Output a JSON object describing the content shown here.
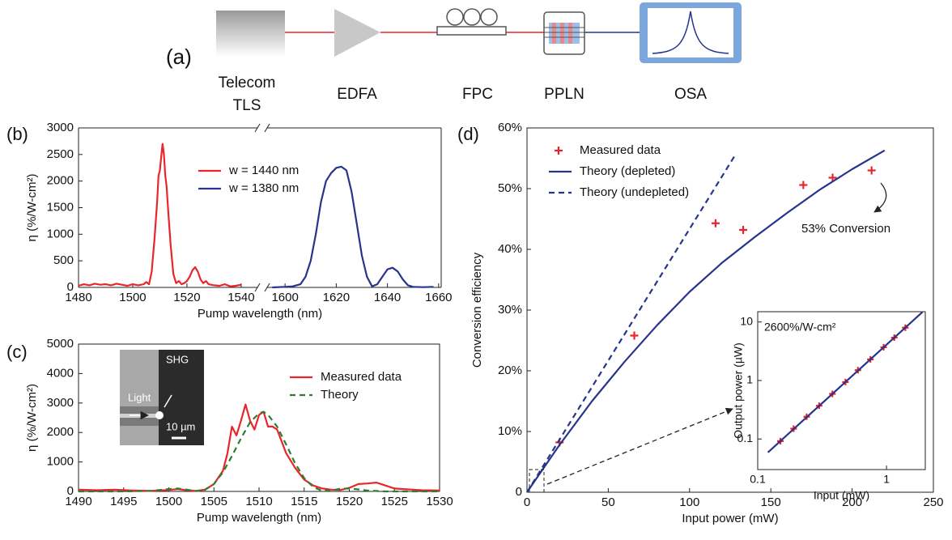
{
  "setup": {
    "panel_label": "(a)",
    "devices": [
      {
        "lines": [
          "Telecom",
          "TLS"
        ]
      },
      {
        "lines": [
          "EDFA"
        ]
      },
      {
        "lines": [
          "FPC"
        ]
      },
      {
        "lines": [
          "PPLN"
        ]
      },
      {
        "lines": [
          "OSA"
        ]
      }
    ]
  },
  "chart_data": [
    {
      "type": "line",
      "panel_label": "(b)",
      "xlabel": "Pump wavelength (nm)",
      "ylabel": "η (%/W-cm²)",
      "x_segments": [
        {
          "xlim": [
            1480,
            1546
          ],
          "xticks": [
            1480,
            1500,
            1520,
            1540
          ]
        },
        {
          "xlim": [
            1593,
            1661
          ],
          "xticks": [
            1600,
            1620,
            1640,
            1660
          ]
        }
      ],
      "ylim": [
        0,
        3000
      ],
      "yticks": [
        0,
        500,
        1000,
        1500,
        2000,
        2500,
        3000
      ],
      "series": [
        {
          "name": "w = 1440 nm",
          "color": "#e8262b",
          "style": "solid",
          "x": [
            1480,
            1482,
            1484,
            1486,
            1488,
            1490,
            1492,
            1494,
            1496,
            1498,
            1500,
            1502,
            1504,
            1505,
            1506,
            1507,
            1508,
            1509,
            1509.5,
            1510,
            1510.5,
            1511,
            1511.5,
            1512,
            1512.5,
            1513,
            1514,
            1515,
            1516,
            1517,
            1518,
            1519,
            1520,
            1521,
            1522,
            1523,
            1524,
            1525,
            1526,
            1527,
            1528,
            1530,
            1532,
            1534,
            1536,
            1538,
            1540
          ],
          "values": [
            30,
            60,
            40,
            70,
            50,
            60,
            40,
            70,
            50,
            30,
            60,
            40,
            60,
            100,
            60,
            300,
            900,
            1600,
            2100,
            2200,
            2450,
            2700,
            2500,
            2100,
            1900,
            1500,
            800,
            250,
            80,
            120,
            60,
            80,
            120,
            200,
            320,
            380,
            300,
            150,
            80,
            120,
            60,
            40,
            30,
            60,
            20,
            30,
            50
          ]
        },
        {
          "name": "w = 1380 nm",
          "color": "#27348b",
          "style": "solid",
          "x": [
            1595,
            1600,
            1603,
            1606,
            1608,
            1610,
            1612,
            1614,
            1616,
            1618,
            1620,
            1622,
            1624,
            1626,
            1628,
            1630,
            1632,
            1634,
            1636,
            1638,
            1640,
            1642,
            1644,
            1646,
            1648,
            1650,
            1654,
            1658
          ],
          "values": [
            0,
            10,
            20,
            60,
            200,
            500,
            1000,
            1600,
            2000,
            2150,
            2250,
            2270,
            2200,
            1800,
            1200,
            600,
            200,
            20,
            60,
            200,
            340,
            370,
            300,
            150,
            40,
            10,
            5,
            10
          ]
        }
      ]
    },
    {
      "type": "line",
      "panel_label": "(c)",
      "xlabel": "Pump wavelength (nm)",
      "ylabel": "η (%/W-cm²)",
      "xlim": [
        1490,
        1530
      ],
      "xticks": [
        1490,
        1495,
        1500,
        1505,
        1510,
        1515,
        1520,
        1525,
        1530
      ],
      "ylim": [
        0,
        5000
      ],
      "yticks": [
        0,
        1000,
        2000,
        3000,
        4000,
        5000
      ],
      "inset_labels": {
        "light": "Light",
        "shg": "SHG",
        "scale": "10 µm"
      },
      "series": [
        {
          "name": "Measured data",
          "color": "#e8262b",
          "style": "solid",
          "x": [
            1490,
            1492,
            1494,
            1496,
            1498,
            1500,
            1501,
            1502,
            1503,
            1504,
            1505,
            1506,
            1506.5,
            1507,
            1507.5,
            1508,
            1508.5,
            1509,
            1509.5,
            1510,
            1510.5,
            1511,
            1511.5,
            1512,
            1512.5,
            1513,
            1514,
            1515,
            1516,
            1517,
            1518,
            1519,
            1520,
            1521,
            1522,
            1523,
            1524,
            1525,
            1526,
            1528,
            1530
          ],
          "values": [
            60,
            40,
            60,
            30,
            20,
            50,
            80,
            40,
            20,
            60,
            250,
            700,
            1300,
            2200,
            1900,
            2400,
            2950,
            2400,
            2100,
            2600,
            2700,
            2200,
            2200,
            2100,
            1700,
            1300,
            800,
            400,
            200,
            100,
            60,
            50,
            120,
            250,
            270,
            300,
            200,
            100,
            80,
            40,
            30
          ]
        },
        {
          "name": "Theory",
          "color": "#2e7d32",
          "style": "dashed",
          "x": [
            1490,
            1495,
            1498,
            1500,
            1501,
            1502,
            1503,
            1504,
            1505,
            1506,
            1507,
            1508,
            1509,
            1510,
            1510.5,
            1511,
            1512,
            1513,
            1514,
            1515,
            1516,
            1517,
            1518,
            1519,
            1520,
            1521,
            1522,
            1524,
            1530
          ],
          "values": [
            0,
            0,
            20,
            80,
            100,
            60,
            10,
            50,
            250,
            650,
            1200,
            1800,
            2350,
            2650,
            2700,
            2600,
            2200,
            1600,
            950,
            450,
            150,
            20,
            30,
            90,
            100,
            70,
            30,
            0,
            0
          ]
        }
      ]
    },
    {
      "type": "line",
      "panel_label": "(d)",
      "xlabel": "Input power (mW)",
      "ylabel": "Conversion efficiency",
      "xlim": [
        0,
        250
      ],
      "xticks": [
        0,
        50,
        100,
        150,
        200,
        250
      ],
      "ylim": [
        0,
        60
      ],
      "yticks": [
        0,
        {
          "value": 10,
          "label": "10%"
        },
        {
          "value": 20,
          "label": "20%"
        },
        {
          "value": 30,
          "label": "30%"
        },
        {
          "value": 40,
          "label": "40%"
        },
        {
          "value": 50,
          "label": "50%"
        },
        {
          "value": 60,
          "label": "60%"
        }
      ],
      "annotation": "53% Conversion",
      "series": [
        {
          "name": "Measured data",
          "color": "#e8262b",
          "style": "markers",
          "x": [
            20,
            66,
            116,
            133,
            170,
            188,
            212
          ],
          "values": [
            8.2,
            25.8,
            44.3,
            43.2,
            50.6,
            51.8,
            53
          ]
        },
        {
          "name": "Theory (depleted)",
          "color": "#27348b",
          "style": "solid",
          "x": [
            0,
            20,
            40,
            60,
            80,
            100,
            120,
            140,
            160,
            180,
            200,
            220
          ],
          "values": [
            0,
            7.8,
            15,
            21.5,
            27.5,
            33,
            37.8,
            42,
            46,
            49.8,
            53.2,
            56.3
          ]
        },
        {
          "name": "Theory (undepleted)",
          "color": "#27348b",
          "style": "dashed",
          "x": [
            0,
            128
          ],
          "values": [
            0,
            55.5
          ]
        }
      ]
    },
    {
      "type": "line",
      "xlabel": "Input (mW)",
      "ylabel": "Output power (µW)",
      "xscale": "log",
      "yscale": "log",
      "xlim": [
        0.1,
        2
      ],
      "xticks": [
        0.1,
        1
      ],
      "ylim": [
        0.03,
        15
      ],
      "yticks": [
        0.1,
        1,
        10
      ],
      "annotation": "2600%/W-cm²",
      "series": [
        {
          "color": "#e8262b",
          "style": "markers",
          "x": [
            0.15,
            0.19,
            0.24,
            0.3,
            0.38,
            0.48,
            0.6,
            0.75,
            0.95,
            1.15,
            1.4
          ],
          "values": [
            0.092,
            0.15,
            0.24,
            0.37,
            0.59,
            0.94,
            1.5,
            2.3,
            3.7,
            5.4,
            8
          ]
        },
        {
          "color": "#27348b",
          "style": "solid",
          "x": [
            0.12,
            1.9
          ],
          "values": [
            0.059,
            14.8
          ]
        }
      ]
    }
  ]
}
